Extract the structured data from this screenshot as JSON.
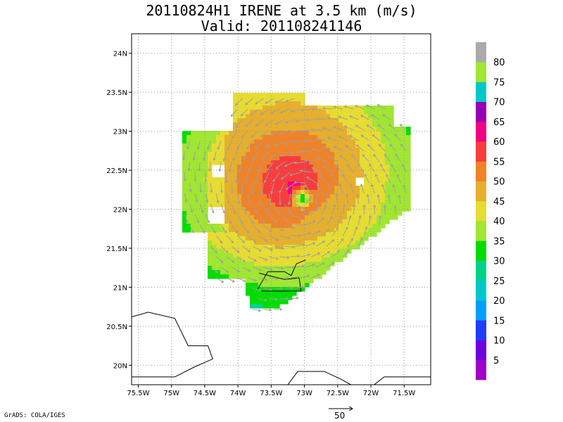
{
  "title": {
    "line1": "20110824H1 IRENE at 3.5 km (m/s)",
    "line2": "Valid: 201108241146"
  },
  "map": {
    "lon_range": [
      -75.6,
      -71.1
    ],
    "lat_range": [
      19.75,
      24.25
    ],
    "lon_ticks": [
      {
        "v": -75.5,
        "label": "75.5W"
      },
      {
        "v": -75,
        "label": "75W"
      },
      {
        "v": -74.5,
        "label": "74.5W"
      },
      {
        "v": -74,
        "label": "74W"
      },
      {
        "v": -73.5,
        "label": "73.5W"
      },
      {
        "v": -73,
        "label": "73W"
      },
      {
        "v": -72.5,
        "label": "72.5W"
      },
      {
        "v": -72,
        "label": "72W"
      },
      {
        "v": -71.5,
        "label": "71.5W"
      }
    ],
    "lat_ticks": [
      {
        "v": 20,
        "label": "20N"
      },
      {
        "v": 20.5,
        "label": "20.5N"
      },
      {
        "v": 21,
        "label": "21N"
      },
      {
        "v": 21.5,
        "label": "21.5N"
      },
      {
        "v": 22,
        "label": "22N"
      },
      {
        "v": 22.5,
        "label": "22.5N"
      },
      {
        "v": 23,
        "label": "23N"
      },
      {
        "v": 23.5,
        "label": "23.5N"
      },
      {
        "v": 24,
        "label": "24N"
      }
    ],
    "storm_center": {
      "lon": -73.05,
      "lat": 22.15
    }
  },
  "colorbar": {
    "colors": [
      "#a000c8",
      "#6e00dc",
      "#1e3cff",
      "#00a0ff",
      "#00c8c8",
      "#00d28c",
      "#00dc00",
      "#a0e632",
      "#e6dc32",
      "#e6af2d",
      "#f08228",
      "#fa3c3c",
      "#f00082",
      "#9600b4",
      "#00c8c8",
      "#a0e632",
      "#aaaaaa"
    ],
    "labels": [
      "5",
      "10",
      "15",
      "20",
      "25",
      "30",
      "35",
      "40",
      "45",
      "50",
      "55",
      "60",
      "65",
      "70",
      "75",
      "80"
    ]
  },
  "credit": "GrADS: COLA/IGES",
  "vector_scale_label": "50"
}
